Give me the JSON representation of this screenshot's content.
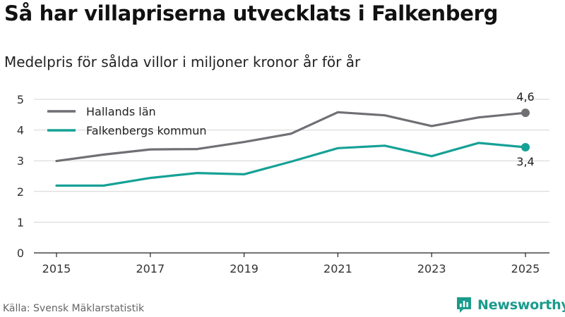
{
  "title": "Så har villapriserna utvecklats i Falkenberg",
  "subtitle": "Medelpris för sålda villor i miljoner kronor år för år",
  "source": "Källa: Svensk Mäklarstatistik",
  "brand": {
    "name": "Newsworthy",
    "icon": "newsworthy-logo-icon",
    "color": "#1a9b8c"
  },
  "chart_data": {
    "type": "line",
    "title": "Så har villapriserna utvecklats i Falkenberg",
    "subtitle": "Medelpris för sålda villor i miljoner kronor år för år",
    "xlabel": "",
    "ylabel": "",
    "x": [
      2015,
      2016,
      2017,
      2018,
      2019,
      2020,
      2021,
      2022,
      2023,
      2024,
      2025
    ],
    "x_tick_labels": [
      "2015",
      "2017",
      "2019",
      "2021",
      "2023",
      "2025"
    ],
    "x_ticks": [
      2015,
      2017,
      2019,
      2021,
      2023,
      2025
    ],
    "xlim": [
      2014.5,
      2025.5
    ],
    "y_ticks": [
      0,
      1,
      2,
      3,
      4,
      5
    ],
    "y_tick_labels": [
      "0",
      "1",
      "2",
      "3",
      "4",
      "5"
    ],
    "ylim": [
      0,
      5
    ],
    "grid": true,
    "legend_position": "top-left",
    "series": [
      {
        "name": "Hallands län",
        "color": "#706f74",
        "values": [
          2.99,
          3.2,
          3.37,
          3.38,
          3.61,
          3.88,
          4.58,
          4.48,
          4.13,
          4.41,
          4.56
        ],
        "end_label": "4,6"
      },
      {
        "name": "Falkenbergs kommun",
        "color": "#16a196",
        "values": [
          2.19,
          2.19,
          2.44,
          2.6,
          2.56,
          2.97,
          3.41,
          3.49,
          3.15,
          3.58,
          3.44
        ],
        "end_label": "3,4"
      }
    ]
  }
}
